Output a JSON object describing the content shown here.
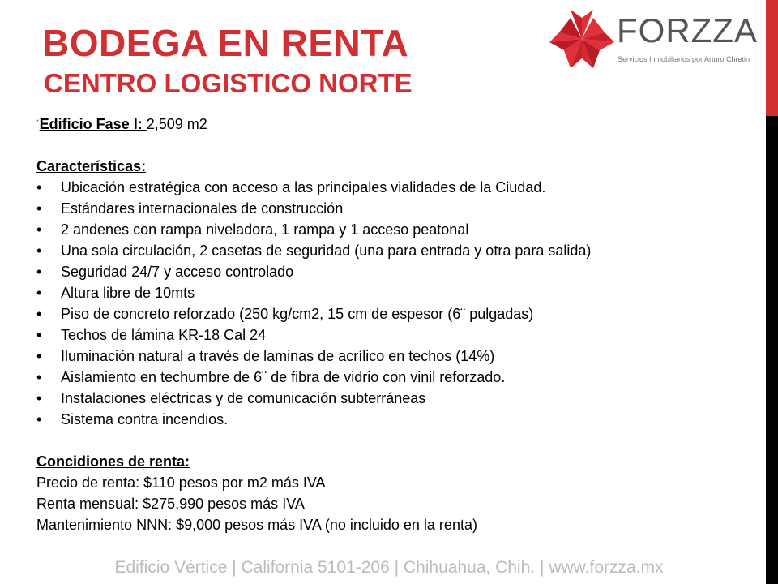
{
  "title": "BODEGA EN RENTA",
  "subtitle": "CENTRO LOGISTICO NORTE",
  "logo": {
    "name": "FORZZA",
    "tagline": "Servicios Inmobiliarios por Arturo Chretin"
  },
  "building": {
    "mark": "´",
    "label": "Edificio  Fase I: ",
    "value": "2,509 m2"
  },
  "features": {
    "heading": "Características:",
    "items": [
      "Ubicación estratégica con acceso a las principales vialidades de la Ciudad.",
      "Estándares internacionales de construcción",
      "2 andenes con rampa niveladora, 1 rampa  y 1 acceso peatonal",
      "Una sola circulación, 2 casetas de seguridad  (una para entrada  y otra para salida)",
      "Seguridad  24/7 y acceso controlado",
      "Altura  libre de 10mts",
      "Piso de concreto reforzado (250 kg/cm2,  15 cm de espesor (6¨ pulgadas)",
      "Techos de lámina  KR-18 Cal 24",
      "Iluminación  natural a través de laminas de acrílico en techos (14%)",
      "Aislamiento  en techumbre  de 6¨ de fibra de vidrio con vinil reforzado.",
      "Instalaciones eléctricas y de comunicación subterráneas",
      "Sistema contra incendios."
    ]
  },
  "conditions": {
    "heading": "Concidiones  de renta:",
    "items": [
      "Precio de renta: $110 pesos por m2 más IVA",
      "Renta mensual:  $275,990 pesos más IVA",
      "Mantenimiento  NNN:  $9,000 pesos más IVA (no incluido en la renta)"
    ]
  },
  "bullet": "•",
  "footer": "Edificio Vértice | California 5101-206 | Chihuahua, Chih. | www.forzza.mx",
  "colors": {
    "accent": "#d22f33",
    "footer": "#bbbbbb"
  }
}
